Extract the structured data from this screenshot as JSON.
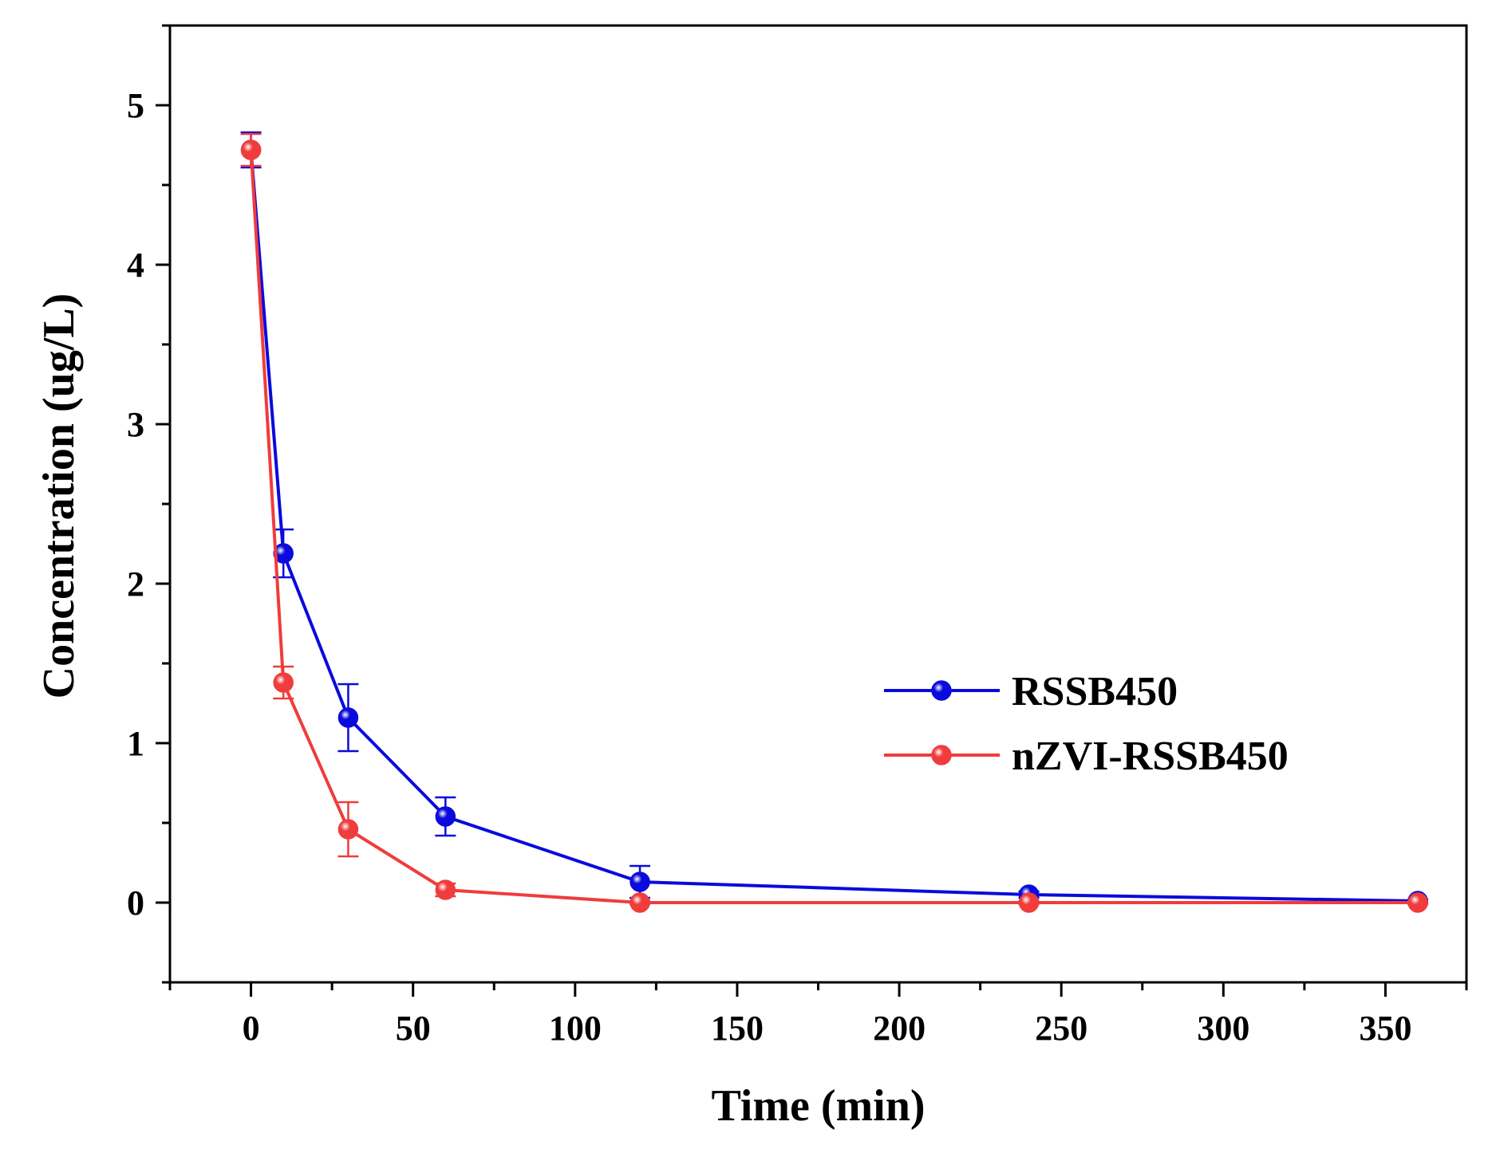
{
  "chart_data": {
    "type": "line",
    "title": "",
    "xlabel": "Time (min)",
    "ylabel": "Concentration (ug/L)",
    "xlim": [
      -25,
      375
    ],
    "ylim": [
      -0.5,
      5.5
    ],
    "x_ticks": [
      0,
      50,
      100,
      150,
      200,
      250,
      300,
      350
    ],
    "x_tick_labels": [
      "0",
      "50",
      "100",
      "150",
      "200",
      "250",
      "300",
      "350"
    ],
    "y_ticks": [
      0,
      1,
      2,
      3,
      4,
      5
    ],
    "y_tick_labels": [
      "0",
      "1",
      "2",
      "3",
      "4",
      "5"
    ],
    "grid": false,
    "legend_position": "center-right",
    "series": [
      {
        "name": "RSSB450",
        "color": "#0a0adc",
        "x": [
          0,
          10,
          30,
          60,
          120,
          240,
          360
        ],
        "values": [
          4.72,
          2.19,
          1.16,
          0.54,
          0.13,
          0.05,
          0.01
        ],
        "errors": [
          0.11,
          0.15,
          0.21,
          0.12,
          0.1,
          0.02,
          0.01
        ]
      },
      {
        "name": "nZVI-RSSB450",
        "color": "#f03c3c",
        "x": [
          0,
          10,
          30,
          60,
          120,
          240,
          360
        ],
        "values": [
          4.72,
          1.38,
          0.46,
          0.08,
          0.0,
          0.0,
          0.0
        ],
        "errors": [
          0.1,
          0.1,
          0.17,
          0.04,
          0.01,
          0.01,
          0.01
        ]
      }
    ]
  }
}
